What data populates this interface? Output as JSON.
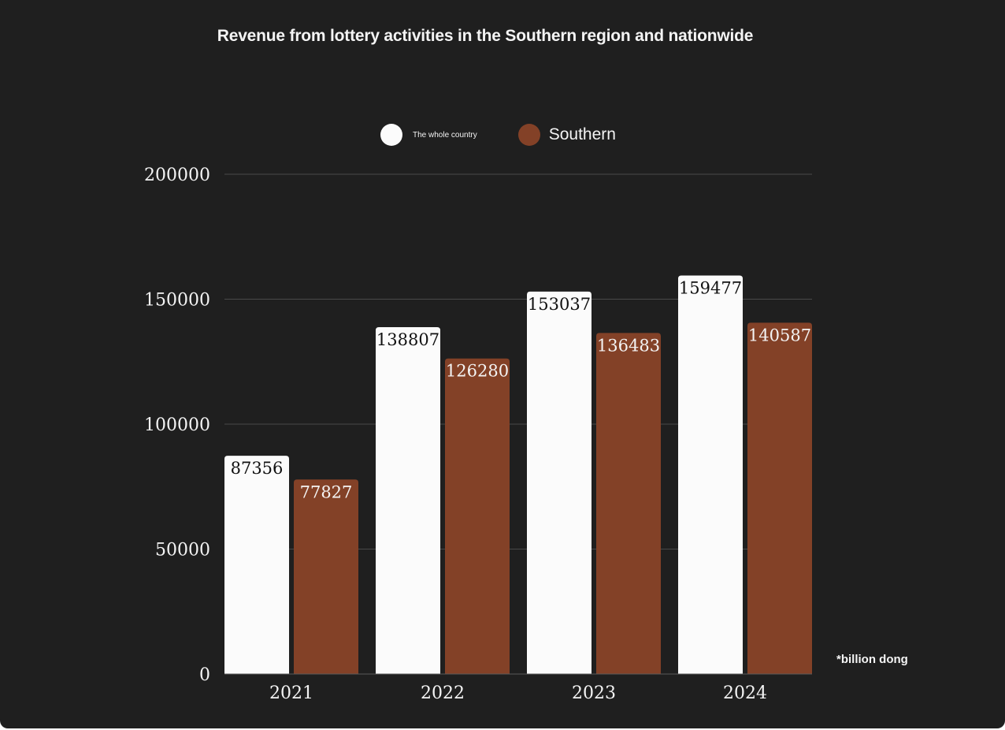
{
  "chart_data": {
    "type": "bar",
    "title": "Revenue from lottery activities in the Southern region and nationwide",
    "categories": [
      "2021",
      "2022",
      "2023",
      "2024"
    ],
    "series": [
      {
        "name": "The whole country",
        "color": "#fbfbfb",
        "label_color": "#111111",
        "values": [
          87356,
          138807,
          153037,
          159477
        ]
      },
      {
        "name": "Southern",
        "color": "#834127",
        "label_color": "#f4f4f4",
        "values": [
          77827,
          126280,
          136483,
          140587
        ]
      }
    ],
    "ylim": [
      0,
      200000
    ],
    "yticks": [
      0,
      50000,
      100000,
      150000,
      200000
    ],
    "grid": true,
    "legend_position": "top-center",
    "note": "*billion dong",
    "xlabel": "",
    "ylabel": ""
  }
}
